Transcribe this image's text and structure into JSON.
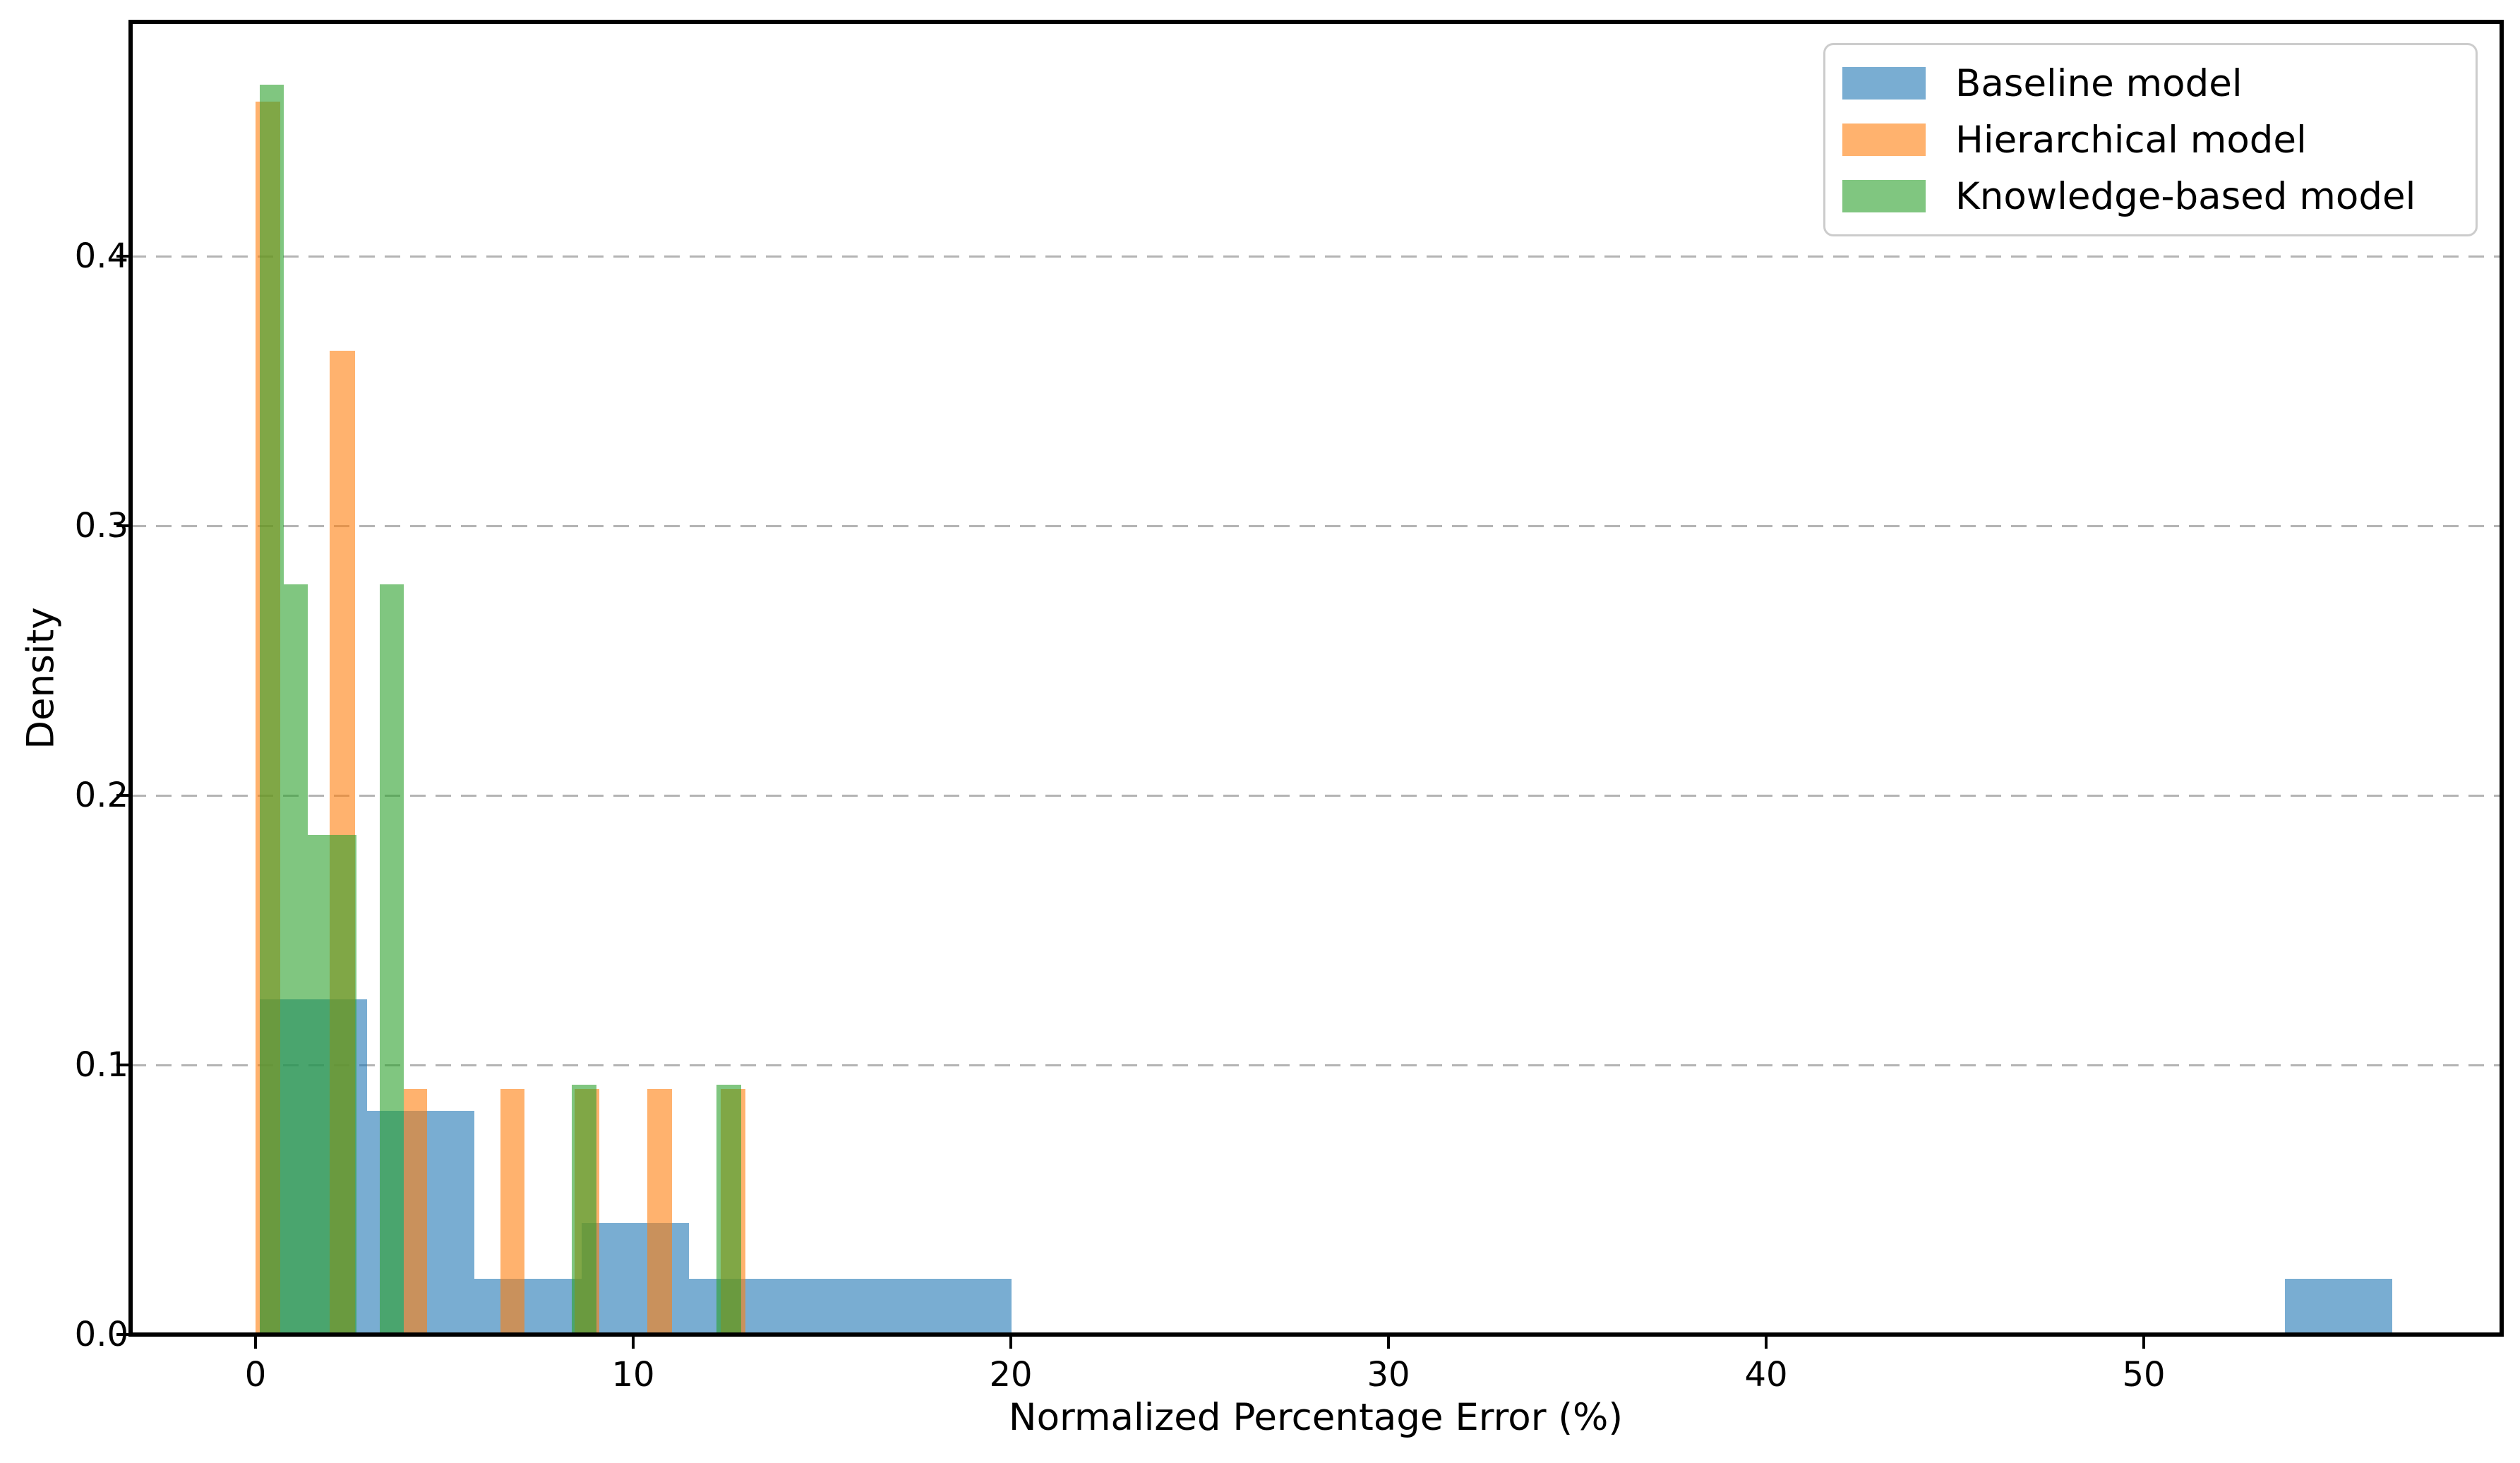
{
  "chart_data": {
    "type": "histogram",
    "title": "",
    "xlabel": "Normalized Percentage Error (%)",
    "ylabel": "Density",
    "xticks": [
      0,
      10,
      20,
      30,
      40,
      50
    ],
    "ytick_labels": [
      "0.0",
      "0.1",
      "0.2",
      "0.3",
      "0.4"
    ],
    "ytick_values": [
      0.0,
      0.1,
      0.2,
      0.3,
      0.4
    ],
    "xlim": [
      -3.3,
      59.5
    ],
    "ylim": [
      0,
      0.487
    ],
    "grid": {
      "axis": "y",
      "style": "dashed",
      "color": "#b4b4b4"
    },
    "legend_position": "upper-right",
    "bar_alpha": 0.6,
    "series": [
      {
        "name": "Baseline model",
        "color": "#1f77b4",
        "bars": [
          {
            "x1": 0.11,
            "x2": 2.95,
            "h": 0.1244
          },
          {
            "x1": 2.95,
            "x2": 5.79,
            "h": 0.0829
          },
          {
            "x1": 5.79,
            "x2": 8.64,
            "h": 0.0207
          },
          {
            "x1": 8.64,
            "x2": 11.48,
            "h": 0.0414
          },
          {
            "x1": 11.48,
            "x2": 14.32,
            "h": 0.0207
          },
          {
            "x1": 14.32,
            "x2": 17.16,
            "h": 0.0207
          },
          {
            "x1": 17.16,
            "x2": 20.01,
            "h": 0.0207
          },
          {
            "x1": 53.74,
            "x2": 56.58,
            "h": 0.0207
          }
        ]
      },
      {
        "name": "Hierarchical model",
        "color": "#ff7f0e",
        "bars": [
          {
            "x1": 0.0,
            "x2": 0.66,
            "h": 0.4573
          },
          {
            "x1": 1.97,
            "x2": 2.64,
            "h": 0.3649
          },
          {
            "x1": 3.93,
            "x2": 4.54,
            "h": 0.0911
          },
          {
            "x1": 6.49,
            "x2": 7.13,
            "h": 0.0911
          },
          {
            "x1": 8.45,
            "x2": 9.1,
            "h": 0.0911
          },
          {
            "x1": 10.37,
            "x2": 11.03,
            "h": 0.0911
          },
          {
            "x1": 12.32,
            "x2": 12.97,
            "h": 0.0911
          }
        ]
      },
      {
        "name": "Knowledge-based model",
        "color": "#2ca02c",
        "bars": [
          {
            "x1": 0.11,
            "x2": 0.75,
            "h": 0.4636
          },
          {
            "x1": 0.75,
            "x2": 1.39,
            "h": 0.2783
          },
          {
            "x1": 1.39,
            "x2": 2.03,
            "h": 0.1853
          },
          {
            "x1": 2.03,
            "x2": 2.67,
            "h": 0.1853
          },
          {
            "x1": 3.29,
            "x2": 3.93,
            "h": 0.2783
          },
          {
            "x1": 8.38,
            "x2": 9.03,
            "h": 0.0927
          },
          {
            "x1": 12.21,
            "x2": 12.86,
            "h": 0.0927
          }
        ]
      }
    ]
  }
}
